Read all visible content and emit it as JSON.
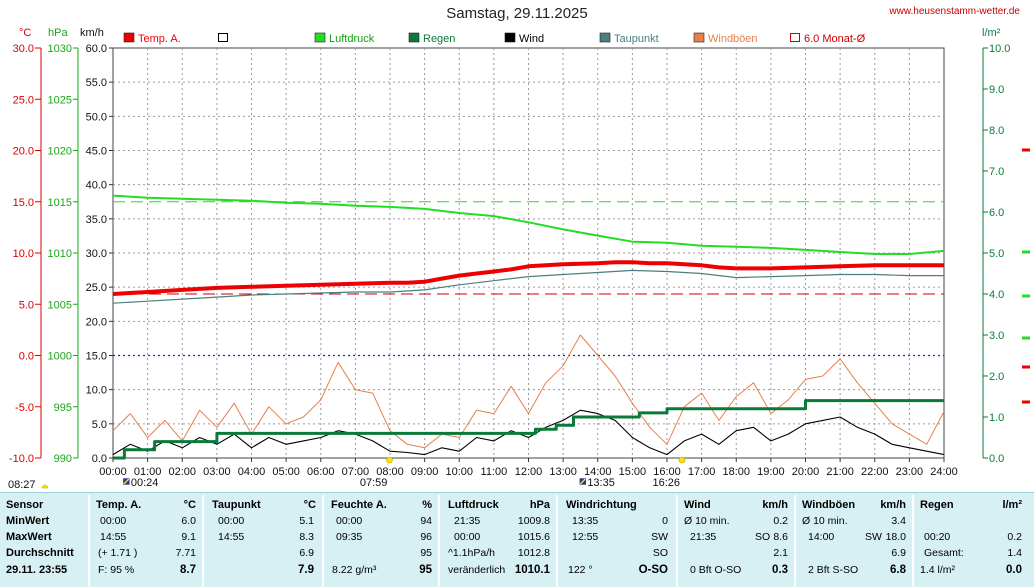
{
  "header": {
    "title": "Samstag, 29.11.2025",
    "site": "www.heusenstamm-wetter.de"
  },
  "axes": {
    "temp_unit": "°C",
    "press_unit": "hPa",
    "wind_unit": "km/h",
    "rain_unit": "l/m²",
    "temp_ticks": [
      "30.0",
      "25.0",
      "20.0",
      "15.0",
      "10.0",
      "5.0",
      "0.0",
      "-5.0",
      "-10.0"
    ],
    "press_ticks": [
      "1030",
      "1025",
      "1020",
      "1015",
      "1010",
      "1005",
      "1000",
      "995",
      "990"
    ],
    "wind_ticks": [
      "60.0",
      "55.0",
      "50.0",
      "45.0",
      "40.0",
      "35.0",
      "30.0",
      "25.0",
      "20.0",
      "15.0",
      "10.0",
      "5.0",
      "0.0"
    ],
    "rain_ticks": [
      "10.0",
      "9.0",
      "8.0",
      "7.0",
      "6.0",
      "5.0",
      "4.0",
      "3.0",
      "2.0",
      "1.0",
      "0.0"
    ],
    "time_ticks": [
      "00:00",
      "01:00",
      "02:00",
      "03:00",
      "04:00",
      "05:00",
      "06:00",
      "07:00",
      "08:00",
      "09:00",
      "10:00",
      "11:00",
      "12:00",
      "13:00",
      "14:00",
      "15:00",
      "16:00",
      "17:00",
      "18:00",
      "19:00",
      "20:00",
      "21:00",
      "22:00",
      "23:00",
      "24:00"
    ]
  },
  "legend": [
    {
      "label": "Temp. A.",
      "color": "#ee0000",
      "style": "filled"
    },
    {
      "label": "",
      "color": "#000000",
      "style": "outline"
    },
    {
      "label": "Luftdruck",
      "color": "#22dd22",
      "style": "filled"
    },
    {
      "label": "Regen",
      "color": "#0a7a3a",
      "style": "filled"
    },
    {
      "label": "Wind",
      "color": "#000000",
      "style": "filled"
    },
    {
      "label": "Taupunkt",
      "color": "#4a7f7f",
      "style": "filled"
    },
    {
      "label": "Windböen",
      "color": "#e8804a",
      "style": "filled"
    },
    {
      "label": "6.0 Monat-Ø",
      "color": "#cc0000",
      "style": "outline"
    }
  ],
  "markers": {
    "sunrise": "07:59",
    "sunset": "16:26",
    "moonrise": "13:35",
    "moonset": "00:24",
    "last_time": "08:27"
  },
  "chart_data": {
    "type": "line",
    "x_unit": "hour",
    "xlim": [
      0,
      24
    ],
    "temp_ylim": [
      -10,
      30
    ],
    "pressure_ylim": [
      990,
      1030
    ],
    "wind_ylim": [
      0,
      60
    ],
    "rain_ylim": [
      0,
      10
    ],
    "reference_lines": {
      "temp_monthly_avg": 6.0,
      "temp_zero": 0.0,
      "pressure_ref": 1015
    },
    "series": [
      {
        "name": "Temp. A.",
        "axis": "temp",
        "color": "#ee0000",
        "x": [
          0,
          1,
          2,
          3,
          4,
          5,
          6,
          7,
          8,
          8.5,
          9,
          9.5,
          10,
          10.5,
          11,
          11.5,
          12,
          12.5,
          13,
          14,
          14.5,
          15,
          15.5,
          16,
          16.5,
          17,
          17.5,
          18,
          19,
          20,
          21,
          22,
          23,
          24
        ],
        "y": [
          6.0,
          6.2,
          6.4,
          6.6,
          6.7,
          6.8,
          6.9,
          7.0,
          7.1,
          7.1,
          7.2,
          7.5,
          7.8,
          8.0,
          8.2,
          8.4,
          8.7,
          8.8,
          8.9,
          9.0,
          9.1,
          9.1,
          9.0,
          9.0,
          8.9,
          8.8,
          8.6,
          8.5,
          8.5,
          8.6,
          8.7,
          8.8,
          8.8,
          8.8
        ]
      },
      {
        "name": "Taupunkt",
        "axis": "temp",
        "color": "#4a7f7f",
        "x": [
          0,
          1,
          2,
          3,
          4,
          5,
          6,
          7,
          8,
          9,
          10,
          11,
          12,
          13,
          14,
          15,
          16,
          17,
          18,
          19,
          20,
          21,
          22,
          23,
          24
        ],
        "y": [
          5.1,
          5.3,
          5.5,
          5.7,
          5.9,
          6.0,
          6.1,
          6.2,
          6.2,
          6.4,
          6.9,
          7.3,
          7.7,
          7.9,
          8.1,
          8.3,
          8.2,
          8.0,
          7.6,
          7.7,
          7.8,
          7.9,
          7.9,
          7.8,
          7.8
        ]
      },
      {
        "name": "Luftdruck",
        "axis": "pressure",
        "color": "#22dd22",
        "x": [
          0,
          1,
          2,
          3,
          4,
          5,
          6,
          7,
          8,
          9,
          10,
          11,
          12,
          13,
          14,
          15,
          16,
          17,
          18,
          19,
          20,
          21,
          22,
          23,
          24
        ],
        "y": [
          1015.6,
          1015.4,
          1015.3,
          1015.2,
          1015.1,
          1014.9,
          1014.8,
          1014.6,
          1014.5,
          1014.3,
          1013.9,
          1013.6,
          1013.0,
          1012.3,
          1011.7,
          1011.1,
          1011.0,
          1010.7,
          1010.6,
          1010.5,
          1010.3,
          1010.1,
          1009.9,
          1009.9,
          1010.2
        ]
      },
      {
        "name": "Regen",
        "axis": "rain",
        "color": "#0a7a3a",
        "step": true,
        "x": [
          0,
          0.33,
          1.0,
          1.2,
          1.7,
          2.5,
          3.0,
          11.8,
          12.2,
          12.8,
          13.3,
          14.2,
          15.2,
          16.0,
          17.5,
          18.5,
          19.5,
          20.0,
          21.0,
          22.0,
          24.0
        ],
        "y": [
          0.0,
          0.2,
          0.2,
          0.4,
          0.4,
          0.4,
          0.6,
          0.6,
          0.7,
          0.8,
          1.0,
          1.0,
          1.1,
          1.2,
          1.2,
          1.2,
          1.2,
          1.4,
          1.4,
          1.4,
          1.4
        ]
      },
      {
        "name": "Wind",
        "axis": "wind",
        "color": "#000000",
        "x": [
          0,
          0.5,
          1,
          1.5,
          2,
          2.5,
          3,
          3.5,
          4,
          4.5,
          5,
          5.5,
          6,
          6.5,
          7,
          7.5,
          8,
          8.5,
          9,
          9.5,
          10,
          10.5,
          11,
          11.5,
          12,
          12.5,
          13,
          13.5,
          14,
          14.5,
          15,
          15.5,
          16,
          16.5,
          17,
          17.5,
          18,
          18.5,
          19,
          19.5,
          20,
          20.5,
          21,
          21.5,
          22,
          22.5,
          23,
          23.5,
          24
        ],
        "y": [
          0.5,
          2.0,
          1.0,
          2.5,
          1.5,
          3.0,
          2.0,
          3.5,
          1.5,
          3.0,
          2.0,
          2.5,
          3.0,
          4.0,
          3.5,
          2.5,
          1.0,
          0.8,
          0.5,
          1.5,
          1.0,
          3.0,
          2.5,
          4.0,
          3.0,
          4.5,
          5.5,
          7.0,
          6.5,
          5.5,
          3.0,
          1.5,
          0.5,
          2.5,
          3.5,
          2.0,
          4.0,
          4.5,
          2.5,
          3.5,
          5.0,
          5.5,
          6.0,
          4.5,
          3.5,
          2.0,
          1.5,
          1.0,
          0.5
        ]
      },
      {
        "name": "Windböen",
        "axis": "wind",
        "color": "#e8804a",
        "x": [
          0,
          0.5,
          1,
          1.5,
          2,
          2.5,
          3,
          3.5,
          4,
          4.5,
          5,
          5.5,
          6,
          6.5,
          7,
          7.5,
          8,
          8.5,
          9,
          9.5,
          10,
          10.5,
          11,
          11.5,
          12,
          12.5,
          13,
          13.5,
          14,
          14.5,
          15,
          15.5,
          16,
          16.5,
          17,
          17.5,
          18,
          18.5,
          19,
          19.5,
          20,
          20.5,
          21,
          21.5,
          22,
          22.5,
          23,
          23.5,
          24
        ],
        "y": [
          4.0,
          6.5,
          3.0,
          5.5,
          2.5,
          7.0,
          4.5,
          8.0,
          3.5,
          7.5,
          5.0,
          6.0,
          8.5,
          14.0,
          10.0,
          9.5,
          4.0,
          2.0,
          1.5,
          3.5,
          3.0,
          7.0,
          6.5,
          10.5,
          6.5,
          11.0,
          13.5,
          18.0,
          15.0,
          12.0,
          8.0,
          4.5,
          2.0,
          7.5,
          9.5,
          5.5,
          9.0,
          11.0,
          6.5,
          8.5,
          11.5,
          12.0,
          14.5,
          11.0,
          8.0,
          5.0,
          3.5,
          2.0,
          6.8
        ]
      }
    ]
  },
  "stats": {
    "sensor": {
      "header": "Sensor",
      "rows": [
        "MinWert",
        "MaxWert",
        "Durchschnitt"
      ],
      "last_date": "29.11. 23:55"
    },
    "temp": {
      "header": "Temp. A.",
      "unit": "°C",
      "min": {
        "time": "00:00",
        "value": "6.0"
      },
      "max": {
        "time": "14:55",
        "value": "9.1"
      },
      "avg": {
        "note": "(+ 1.71 )",
        "value": "7.71"
      },
      "last": {
        "note": "F: 95 %",
        "value": "8.7"
      }
    },
    "dew": {
      "header": "Taupunkt",
      "unit": "°C",
      "min": {
        "time": "00:00",
        "value": "5.1"
      },
      "max": {
        "time": "14:55",
        "value": "8.3"
      },
      "avg": {
        "value": "6.9"
      },
      "last": {
        "value": "7.9"
      }
    },
    "humidity": {
      "header": "Feuchte A.",
      "unit": "%",
      "min": {
        "time": "00:00",
        "value": "94"
      },
      "max": {
        "time": "09:35",
        "value": "96"
      },
      "avg": {
        "value": "95"
      },
      "last": {
        "note": "8.22 g/m³",
        "value": "95"
      }
    },
    "pressure": {
      "header": "Luftdruck",
      "unit": "hPa",
      "min": {
        "time": "21:35",
        "value": "1009.8"
      },
      "max": {
        "time": "00:00",
        "value": "1015.6"
      },
      "avg": {
        "note": "^1.1hPa/h",
        "value": "1012.8"
      },
      "last": {
        "note": "veränderlich",
        "value": "1010.1"
      }
    },
    "direction": {
      "header": "Windrichtung",
      "min": {
        "time": "13:35",
        "value": "0"
      },
      "max": {
        "time": "12:55",
        "value": "SW"
      },
      "avg": {
        "value": "SO"
      },
      "last": {
        "note": "122 °",
        "value": "O-SO"
      }
    },
    "wind": {
      "header": "Wind",
      "unit": "km/h",
      "min": {
        "time": "Ø 10 min.",
        "value": "0.2"
      },
      "max": {
        "time": "21:35",
        "dir": "SO",
        "value": "8.6"
      },
      "avg": {
        "value": "2.1"
      },
      "last": {
        "note": "0 Bft O-SO",
        "value": "0.3"
      }
    },
    "gust": {
      "header": "Windböen",
      "unit": "km/h",
      "min": {
        "time": "Ø 10 min.",
        "value": "3.4"
      },
      "max": {
        "time": "14:00",
        "dir": "SW",
        "value": "18.0"
      },
      "avg": {
        "value": "6.9"
      },
      "last": {
        "note": "2 Bft S-SO",
        "value": "6.8"
      }
    },
    "rain": {
      "header": "Regen",
      "unit": "l/m²",
      "min": {
        "time": "00:20",
        "value": "0.2"
      },
      "max": {
        "time": "Gesamt:",
        "value": "1.4"
      },
      "last": {
        "note": "1.4 l/m²",
        "value": "0.0"
      }
    }
  }
}
